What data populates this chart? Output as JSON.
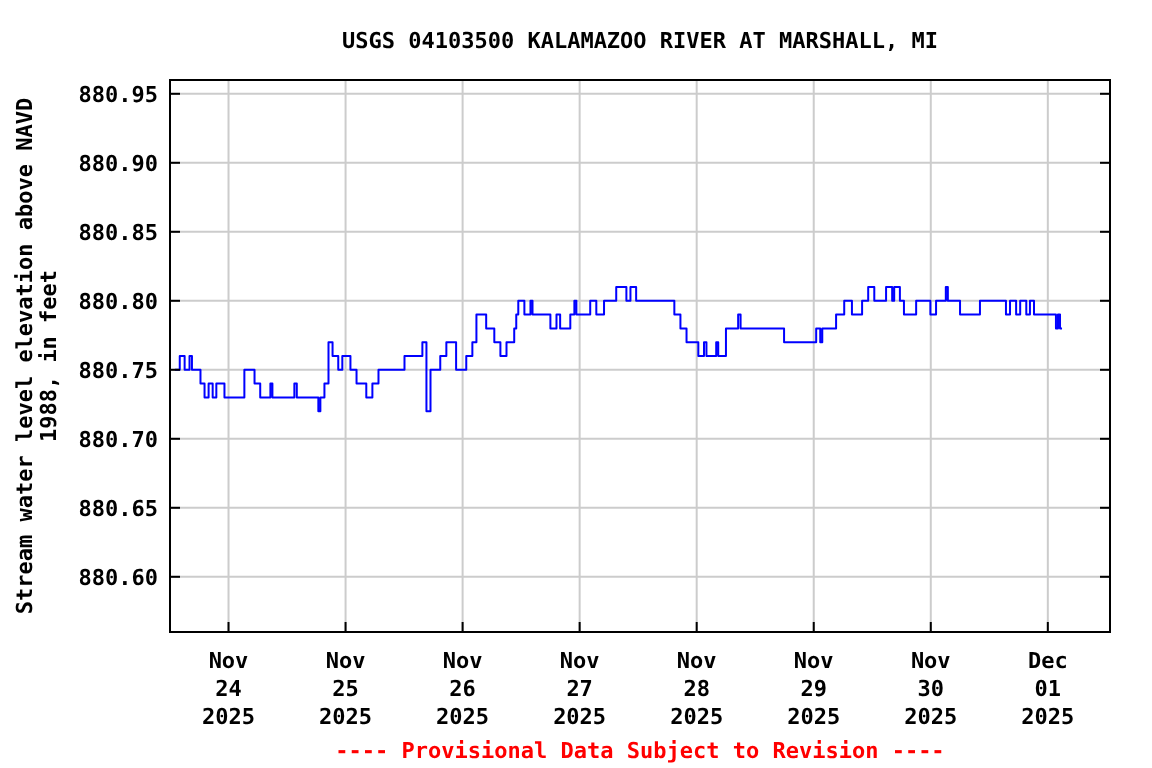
{
  "chart_data": {
    "type": "step",
    "title": "USGS 04103500 KALAMAZOO RIVER AT MARSHALL, MI",
    "ylabel": "Stream water level elevation above NAVD 1988, in feet",
    "annotations": [
      "---- Provisional Data Subject to Revision ----"
    ],
    "xlim": [
      "2025-11-23T12:00",
      "2025-12-01T12:45"
    ],
    "xticks": [
      {
        "value": "2025-11-24",
        "label": "Nov\n24\n2025"
      },
      {
        "value": "2025-11-25",
        "label": "Nov\n25\n2025"
      },
      {
        "value": "2025-11-26",
        "label": "Nov\n26\n2025"
      },
      {
        "value": "2025-11-27",
        "label": "Nov\n27\n2025"
      },
      {
        "value": "2025-11-28",
        "label": "Nov\n28\n2025"
      },
      {
        "value": "2025-11-29",
        "label": "Nov\n29\n2025"
      },
      {
        "value": "2025-11-30",
        "label": "Nov\n30\n2025"
      },
      {
        "value": "2025-12-01",
        "label": "Dec\n01\n2025"
      }
    ],
    "ylim": [
      880.56,
      880.96
    ],
    "yticks": [
      {
        "value": 880.6,
        "label": "880.60"
      },
      {
        "value": 880.65,
        "label": "880.65"
      },
      {
        "value": 880.7,
        "label": "880.70"
      },
      {
        "value": 880.75,
        "label": "880.75"
      },
      {
        "value": 880.8,
        "label": "880.80"
      },
      {
        "value": 880.85,
        "label": "880.85"
      },
      {
        "value": 880.9,
        "label": "880.90"
      },
      {
        "value": 880.95,
        "label": "880.95"
      }
    ],
    "grid": true,
    "series": [
      {
        "color": "#0000ff",
        "x": [
          "2025-11-23T13:00",
          "2025-11-23T14:00",
          "2025-11-23T15:00",
          "2025-11-23T16:00",
          "2025-11-23T16:30",
          "2025-11-23T18:15",
          "2025-11-23T19:05",
          "2025-11-23T19:55",
          "2025-11-23T20:45",
          "2025-11-23T21:30",
          "2025-11-23T23:10",
          "2025-11-24T03:15",
          "2025-11-24T05:20",
          "2025-11-24T06:30",
          "2025-11-24T08:35",
          "2025-11-24T09:00",
          "2025-11-24T13:30",
          "2025-11-24T14:00",
          "2025-11-24T18:25",
          "2025-11-24T18:50",
          "2025-11-24T19:40",
          "2025-11-24T20:30",
          "2025-11-24T21:20",
          "2025-11-24T22:30",
          "2025-11-24T23:20",
          "2025-11-25T01:00",
          "2025-11-25T02:15",
          "2025-11-25T04:15",
          "2025-11-25T05:30",
          "2025-11-25T06:45",
          "2025-11-25T12:05",
          "2025-11-25T15:45",
          "2025-11-25T16:35",
          "2025-11-25T17:25",
          "2025-11-25T19:25",
          "2025-11-25T20:40",
          "2025-11-25T22:40",
          "2025-11-26T00:45",
          "2025-11-26T02:00",
          "2025-11-26T02:50",
          "2025-11-26T04:50",
          "2025-11-26T06:30",
          "2025-11-26T07:45",
          "2025-11-26T09:00",
          "2025-11-26T10:35",
          "2025-11-26T11:00",
          "2025-11-26T11:25",
          "2025-11-26T12:40",
          "2025-11-26T13:55",
          "2025-11-26T14:20",
          "2025-11-26T18:00",
          "2025-11-26T19:15",
          "2025-11-26T20:00",
          "2025-11-26T22:05",
          "2025-11-26T22:55",
          "2025-11-26T23:20",
          "2025-11-27T02:10",
          "2025-11-27T03:25",
          "2025-11-27T05:00",
          "2025-11-27T07:30",
          "2025-11-27T09:35",
          "2025-11-27T10:25",
          "2025-11-27T11:35",
          "2025-11-27T19:25",
          "2025-11-27T20:40",
          "2025-11-27T21:55",
          "2025-11-28T00:20",
          "2025-11-28T01:30",
          "2025-11-28T02:00",
          "2025-11-28T04:00",
          "2025-11-28T04:25",
          "2025-11-28T06:00",
          "2025-11-28T08:30",
          "2025-11-28T09:00",
          "2025-11-28T17:55",
          "2025-11-29T00:30",
          "2025-11-29T01:20",
          "2025-11-29T01:45",
          "2025-11-29T04:35",
          "2025-11-29T06:15",
          "2025-11-29T07:50",
          "2025-11-29T09:55",
          "2025-11-29T11:10",
          "2025-11-29T12:25",
          "2025-11-29T14:50",
          "2025-11-29T16:05",
          "2025-11-29T16:30",
          "2025-11-29T17:40",
          "2025-11-29T18:30",
          "2025-11-29T21:00",
          "2025-11-29T23:55",
          "2025-11-30T01:05",
          "2025-11-30T03:05",
          "2025-11-30T03:30",
          "2025-11-30T06:00",
          "2025-11-30T10:05",
          "2025-11-30T15:25",
          "2025-11-30T16:15",
          "2025-11-30T17:30",
          "2025-11-30T18:20",
          "2025-11-30T19:35",
          "2025-11-30T20:20",
          "2025-11-30T21:10",
          "2025-12-01T01:40",
          "2025-12-01T02:05",
          "2025-12-01T02:30",
          "2025-12-01T02:55"
        ],
        "values": [
          880.75,
          880.76,
          880.75,
          880.76,
          880.75,
          880.74,
          880.73,
          880.74,
          880.73,
          880.74,
          880.73,
          880.75,
          880.74,
          880.73,
          880.74,
          880.73,
          880.74,
          880.73,
          880.72,
          880.73,
          880.74,
          880.77,
          880.76,
          880.75,
          880.76,
          880.75,
          880.74,
          880.73,
          880.74,
          880.75,
          880.76,
          880.77,
          880.72,
          880.75,
          880.76,
          880.77,
          880.75,
          880.76,
          880.77,
          880.79,
          880.78,
          880.77,
          880.76,
          880.77,
          880.78,
          880.79,
          880.8,
          880.79,
          880.8,
          880.79,
          880.78,
          880.79,
          880.78,
          880.79,
          880.8,
          880.79,
          880.8,
          880.79,
          880.8,
          880.81,
          880.8,
          880.81,
          880.8,
          880.79,
          880.78,
          880.77,
          880.76,
          880.77,
          880.76,
          880.77,
          880.76,
          880.78,
          880.79,
          880.78,
          880.77,
          880.78,
          880.77,
          880.78,
          880.79,
          880.8,
          880.79,
          880.8,
          880.81,
          880.8,
          880.81,
          880.8,
          880.81,
          880.8,
          880.79,
          880.8,
          880.79,
          880.8,
          880.81,
          880.8,
          880.79,
          880.8,
          880.79,
          880.8,
          880.79,
          880.8,
          880.79,
          880.8,
          880.79,
          880.78,
          880.79,
          880.78,
          880.78
        ]
      }
    ]
  }
}
